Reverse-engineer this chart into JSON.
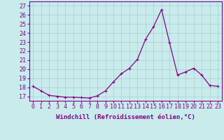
{
  "x": [
    0,
    1,
    2,
    3,
    4,
    5,
    6,
    7,
    8,
    9,
    10,
    11,
    12,
    13,
    14,
    15,
    16,
    17,
    18,
    19,
    20,
    21,
    22,
    23
  ],
  "y": [
    18.1,
    17.6,
    17.1,
    17.0,
    16.9,
    16.9,
    16.85,
    16.8,
    17.05,
    17.6,
    18.6,
    19.5,
    20.1,
    21.1,
    23.3,
    24.7,
    26.6,
    22.9,
    19.35,
    19.7,
    20.1,
    19.35,
    18.2,
    18.1
  ],
  "line_color": "#880088",
  "marker": "+",
  "markersize": 3.0,
  "linewidth": 0.9,
  "background_color": "#c8ecec",
  "grid_color": "#aacccc",
  "xlabel": "Windchill (Refroidissement éolien,°C)",
  "xlabel_fontsize": 6.5,
  "tick_fontsize": 6.0,
  "xlim": [
    -0.5,
    23.5
  ],
  "ylim": [
    16.5,
    27.5
  ],
  "yticks": [
    17,
    18,
    19,
    20,
    21,
    22,
    23,
    24,
    25,
    26,
    27
  ],
  "xticks": [
    0,
    1,
    2,
    3,
    4,
    5,
    6,
    7,
    8,
    9,
    10,
    11,
    12,
    13,
    14,
    15,
    16,
    17,
    18,
    19,
    20,
    21,
    22,
    23
  ]
}
